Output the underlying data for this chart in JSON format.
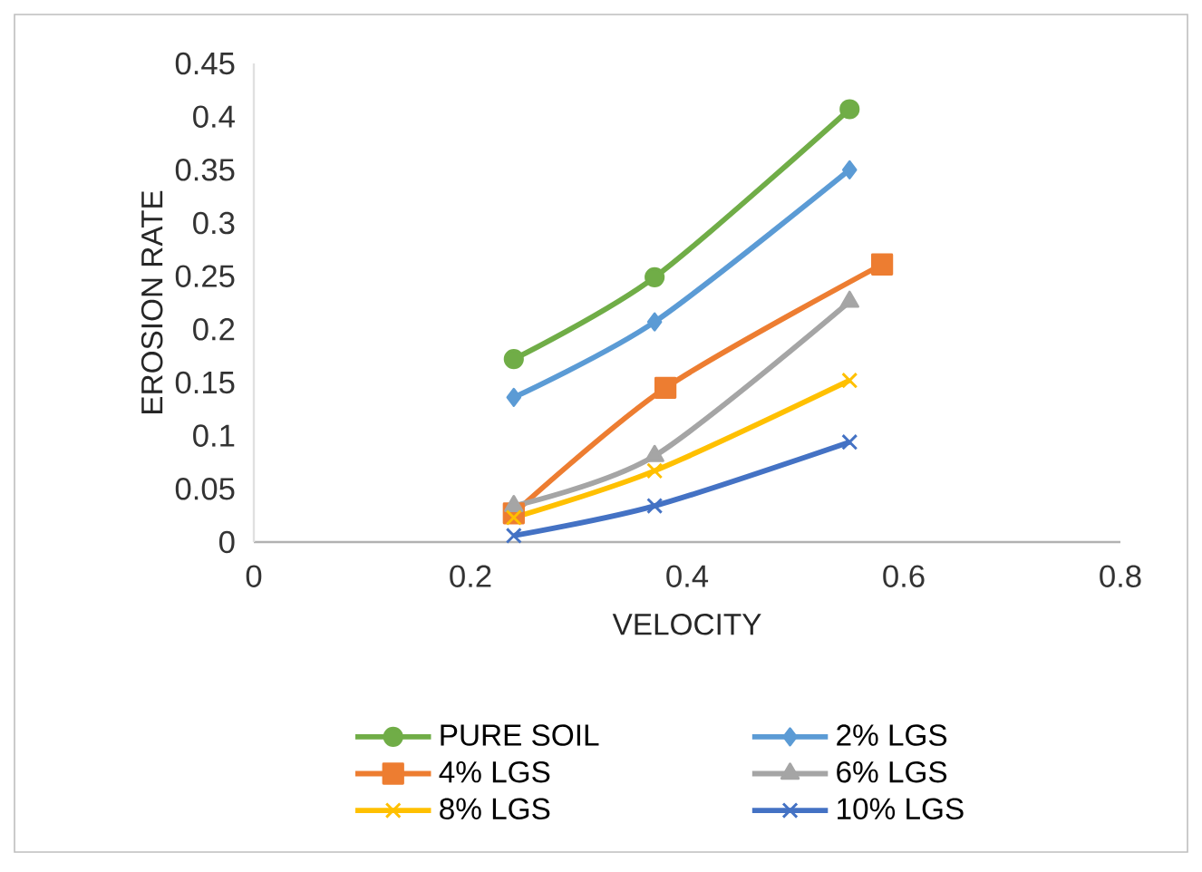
{
  "chart_data": {
    "type": "line",
    "xlabel": "VELOCITY",
    "ylabel": "EROSION RATE",
    "xlim": [
      0,
      0.8
    ],
    "xticks": [
      0,
      0.2,
      0.4,
      0.6,
      0.8
    ],
    "ylim": [
      0,
      0.45
    ],
    "yticks": [
      0,
      0.05,
      0.1,
      0.15,
      0.2,
      0.25,
      0.3,
      0.35,
      0.4,
      0.45
    ],
    "grid": false,
    "legend": "bottom",
    "line_style": "solid",
    "series": [
      {
        "name": "PURE SOIL",
        "color": "#70ad47",
        "marker": "circle",
        "x": [
          0.24,
          0.37,
          0.55
        ],
        "values": [
          0.172,
          0.249,
          0.407
        ]
      },
      {
        "name": "2% LGS",
        "color": "#5b9bd5",
        "marker": "diamond",
        "x": [
          0.24,
          0.37,
          0.55
        ],
        "values": [
          0.136,
          0.207,
          0.35
        ]
      },
      {
        "name": "4% LGS",
        "color": "#ed7d31",
        "marker": "square",
        "x": [
          0.24,
          0.38,
          0.58
        ],
        "values": [
          0.027,
          0.145,
          0.261
        ]
      },
      {
        "name": "6% LGS",
        "color": "#a5a5a5",
        "marker": "triangle",
        "x": [
          0.24,
          0.37,
          0.55
        ],
        "values": [
          0.034,
          0.081,
          0.226
        ]
      },
      {
        "name": "8% LGS",
        "color": "#ffc000",
        "marker": "cross",
        "x": [
          0.24,
          0.37,
          0.55
        ],
        "values": [
          0.023,
          0.067,
          0.152
        ]
      },
      {
        "name": "10% LGS",
        "color": "#4472c4",
        "marker": "cross",
        "x": [
          0.24,
          0.37,
          0.55
        ],
        "values": [
          0.006,
          0.034,
          0.094
        ]
      }
    ]
  }
}
